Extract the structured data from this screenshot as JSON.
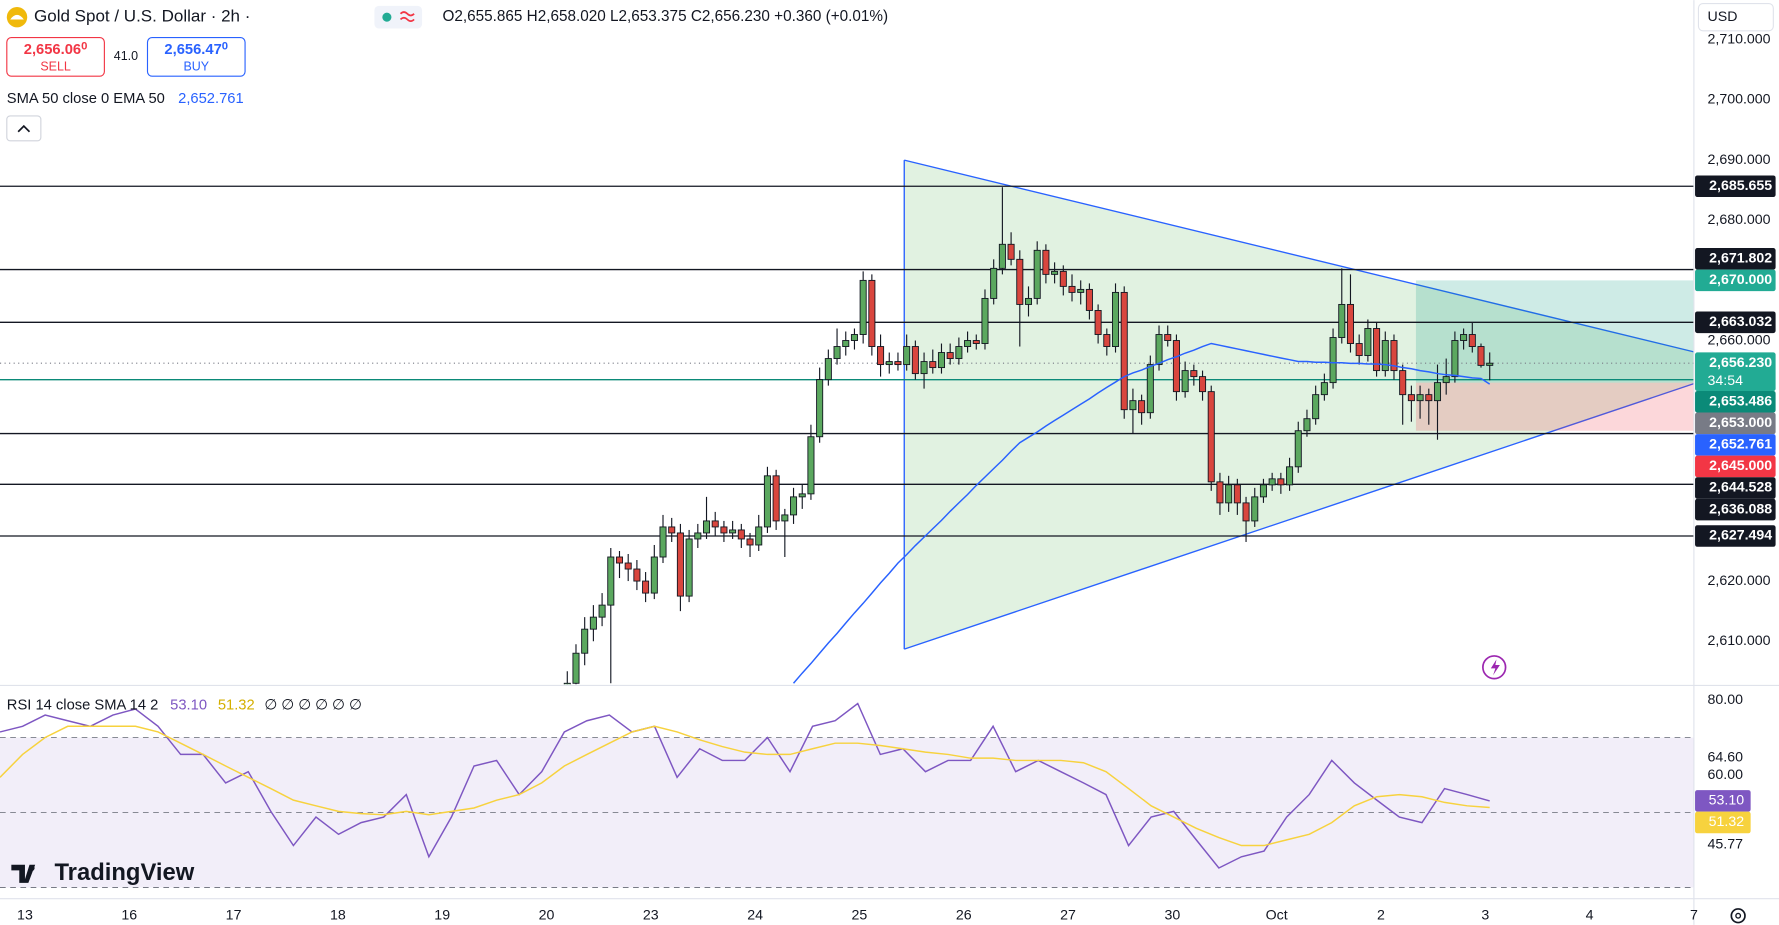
{
  "header": {
    "sell_price": "2,656.06",
    "sell_pip": "0",
    "sell": "SELL",
    "spread": "41.0",
    "buy_price": "2,656.47",
    "buy_pip": "0",
    "buy": "BUY",
    "currency": "USD",
    "logo": "TradingView"
  },
  "chart_data": [
    {
      "type": "candlestick",
      "title": "Gold Spot / U.S. Dollar · 2h ·",
      "ohlc_legend": "O2,655.865 H2,658.020 L2,653.375 C2,656.230 +0.360 (+0.01%)",
      "up_color": "#5ba85f",
      "down_color": "#d9463e",
      "ylim": [
        2602.83,
        2716.6
      ],
      "yticks": [
        {
          "value": 2610,
          "label": "2,610.000"
        },
        {
          "value": 2620,
          "label": "2,620.000"
        },
        {
          "value": 2660,
          "label": "2,660.000"
        },
        {
          "value": 2680,
          "label": "2,680.000"
        },
        {
          "value": 2690,
          "label": "2,690.000"
        },
        {
          "value": 2700,
          "label": "2,700.000"
        },
        {
          "value": 2710,
          "label": "2,710.000"
        }
      ],
      "xticks": [
        "13",
        "16",
        "17",
        "18",
        "19",
        "20",
        "23",
        "24",
        "25",
        "26",
        "27",
        "30",
        "Oct",
        "2",
        "3",
        "4",
        "7"
      ],
      "ohlc": [
        [
          2600,
          2605,
          2598,
          2603
        ],
        [
          2603,
          2609.5,
          2601.5,
          2608
        ],
        [
          2608,
          2614,
          2606,
          2612
        ],
        [
          2612,
          2616,
          2610,
          2614
        ],
        [
          2614,
          2618,
          2612.5,
          2616
        ],
        [
          2616,
          2625.5,
          2603,
          2624
        ],
        [
          2624,
          2625,
          2620.5,
          2623
        ],
        [
          2623,
          2624.5,
          2620,
          2622
        ],
        [
          2622,
          2623.5,
          2618.5,
          2620
        ],
        [
          2620,
          2621.5,
          2616.5,
          2618
        ],
        [
          2618,
          2626,
          2617,
          2624
        ],
        [
          2624,
          2631,
          2623,
          2629
        ],
        [
          2629,
          2630.5,
          2626.5,
          2628
        ],
        [
          2628,
          2629.5,
          2615,
          2617.5
        ],
        [
          2617.5,
          2628.5,
          2616.5,
          2627
        ],
        [
          2627,
          2629.5,
          2625.5,
          2628
        ],
        [
          2628,
          2634,
          2627,
          2630
        ],
        [
          2630,
          2631.5,
          2627.5,
          2629
        ],
        [
          2629,
          2630,
          2626.5,
          2628
        ],
        [
          2628,
          2630,
          2627,
          2628.5
        ],
        [
          2628.5,
          2629.5,
          2625.5,
          2627
        ],
        [
          2627,
          2628,
          2624,
          2626
        ],
        [
          2626,
          2631,
          2625,
          2629
        ],
        [
          2629,
          2639,
          2628,
          2637.5
        ],
        [
          2637.5,
          2638.5,
          2628.5,
          2630
        ],
        [
          2630,
          2632,
          2624,
          2631
        ],
        [
          2631,
          2635.5,
          2629.5,
          2634
        ],
        [
          2634,
          2636,
          2632,
          2634.5
        ],
        [
          2634.5,
          2646,
          2633.5,
          2644
        ],
        [
          2644,
          2655.5,
          2643,
          2653.5
        ],
        [
          2653.5,
          2658.5,
          2652.5,
          2657
        ],
        [
          2657,
          2662,
          2656,
          2659
        ],
        [
          2659,
          2661.5,
          2657.5,
          2660
        ],
        [
          2660,
          2662,
          2658.5,
          2661
        ],
        [
          2661,
          2671.5,
          2659.5,
          2670
        ],
        [
          2670,
          2671,
          2657.5,
          2659
        ],
        [
          2659,
          2661,
          2654,
          2656
        ],
        [
          2656,
          2658,
          2654.5,
          2656.5
        ],
        [
          2656.5,
          2658,
          2655,
          2656
        ],
        [
          2656,
          2661,
          2655,
          2659
        ],
        [
          2659,
          2660,
          2653.5,
          2654.5
        ],
        [
          2654.5,
          2658,
          2652,
          2656.5
        ],
        [
          2656.5,
          2658.5,
          2654.5,
          2655.5
        ],
        [
          2655.5,
          2659.5,
          2654.5,
          2658
        ],
        [
          2658,
          2659.5,
          2656,
          2657
        ],
        [
          2657,
          2660.5,
          2656,
          2659
        ],
        [
          2659,
          2661.5,
          2658,
          2660
        ],
        [
          2660,
          2661,
          2658.5,
          2659.5
        ],
        [
          2659.5,
          2668.5,
          2658.5,
          2667
        ],
        [
          2667,
          2673.5,
          2666,
          2672
        ],
        [
          2672,
          2685.5,
          2671,
          2676
        ],
        [
          2676,
          2678,
          2672.5,
          2673.5
        ],
        [
          2673.5,
          2675,
          2659,
          2666
        ],
        [
          2666,
          2669,
          2664,
          2667
        ],
        [
          2667,
          2676.5,
          2666,
          2675
        ],
        [
          2675,
          2676,
          2669.5,
          2671
        ],
        [
          2671,
          2673,
          2669.5,
          2671.5
        ],
        [
          2671.5,
          2672.5,
          2667.5,
          2669
        ],
        [
          2669,
          2671,
          2666.5,
          2668
        ],
        [
          2668,
          2670,
          2666,
          2668.5
        ],
        [
          2668.5,
          2669.5,
          2663.5,
          2665
        ],
        [
          2665,
          2666,
          2659.5,
          2661
        ],
        [
          2661,
          2662,
          2657.5,
          2659
        ],
        [
          2659,
          2669.5,
          2658,
          2668
        ],
        [
          2668,
          2669,
          2647,
          2648.5
        ],
        [
          2648.5,
          2652,
          2644.5,
          2650
        ],
        [
          2650,
          2651,
          2646,
          2648
        ],
        [
          2648,
          2657.5,
          2647,
          2656
        ],
        [
          2656,
          2662.5,
          2655,
          2661
        ],
        [
          2661,
          2662.5,
          2659,
          2660
        ],
        [
          2660,
          2661,
          2650,
          2651.5
        ],
        [
          2651.5,
          2656.5,
          2650.5,
          2655
        ],
        [
          2655,
          2656,
          2652.5,
          2654
        ],
        [
          2654,
          2655,
          2650,
          2651.5
        ],
        [
          2651.5,
          2652.5,
          2635,
          2636.5
        ],
        [
          2636.5,
          2638,
          2631,
          2633
        ],
        [
          2633,
          2637.5,
          2631.5,
          2636
        ],
        [
          2636,
          2637,
          2631,
          2633
        ],
        [
          2633,
          2634,
          2626.5,
          2630
        ],
        [
          2630,
          2635.5,
          2629,
          2634
        ],
        [
          2634,
          2637,
          2633,
          2636
        ],
        [
          2636,
          2638,
          2635,
          2637
        ],
        [
          2637,
          2638,
          2634.5,
          2636
        ],
        [
          2636,
          2640.5,
          2635,
          2639
        ],
        [
          2639,
          2646.5,
          2638,
          2645
        ],
        [
          2645,
          2648.5,
          2644,
          2647
        ],
        [
          2647,
          2652.5,
          2646,
          2651
        ],
        [
          2651,
          2654.5,
          2650,
          2653
        ],
        [
          2653,
          2662,
          2652,
          2660.5
        ],
        [
          2660.5,
          2672,
          2659.5,
          2666
        ],
        [
          2666,
          2671,
          2658,
          2659.5
        ],
        [
          2659.5,
          2661,
          2656,
          2657.5
        ],
        [
          2657.5,
          2663.5,
          2656.5,
          2662
        ],
        [
          2662,
          2663,
          2654,
          2655
        ],
        [
          2655,
          2661.5,
          2654,
          2660
        ],
        [
          2660,
          2661,
          2653.5,
          2655
        ],
        [
          2655,
          2656,
          2646,
          2651
        ],
        [
          2651,
          2652.5,
          2646.5,
          2650
        ],
        [
          2650,
          2652.5,
          2647,
          2651
        ],
        [
          2651,
          2652,
          2646,
          2650
        ],
        [
          2650,
          2656,
          2643.5,
          2653
        ],
        [
          2653,
          2657,
          2651,
          2654
        ],
        [
          2654,
          2661.5,
          2653,
          2660
        ],
        [
          2660,
          2662,
          2658.5,
          2661
        ],
        [
          2661,
          2663,
          2658,
          2659
        ],
        [
          2659,
          2659.5,
          2655.5,
          2655.865
        ],
        [
          2655.865,
          2658.02,
          2653.375,
          2656.23
        ]
      ],
      "series": [
        {
          "name": "SMA 50 close 0 EMA 50",
          "color": "#2962ff",
          "values": [
            null,
            null,
            null,
            null,
            null,
            null,
            null,
            null,
            null,
            null,
            null,
            null,
            null,
            null,
            null,
            null,
            null,
            null,
            null,
            null,
            null,
            null,
            null,
            null,
            null,
            null,
            2603,
            2604.7,
            2606.3,
            2608,
            2609.7,
            2611.3,
            2613,
            2614.7,
            2616.3,
            2618,
            2619.7,
            2621.3,
            2623,
            2624.4,
            2625.9,
            2627.3,
            2628.7,
            2630.1,
            2631.6,
            2633,
            2634.4,
            2635.9,
            2637.3,
            2638.7,
            2640.1,
            2641.6,
            2643,
            2643.9,
            2644.8,
            2645.8,
            2646.7,
            2647.6,
            2648.5,
            2649.4,
            2650.3,
            2651.3,
            2652.2,
            2653.1,
            2654,
            2654.6,
            2655.1,
            2655.7,
            2656.2,
            2656.8,
            2657.3,
            2657.9,
            2658.4,
            2659,
            2659.5,
            2659.2,
            2658.9,
            2658.6,
            2658.3,
            2658,
            2657.7,
            2657.4,
            2657.1,
            2656.8,
            2656.5,
            2656.5,
            2656.4,
            2656.4,
            2656.3,
            2656.3,
            2656.2,
            2656.2,
            2656.1,
            2656.1,
            2656,
            2655.8,
            2655.5,
            2655.3,
            2655,
            2654.8,
            2654.5,
            2654.3,
            2654.2,
            2654,
            2653.8,
            2653.7,
            2652.761
          ]
        }
      ],
      "price_labels": [
        {
          "value": 2685.655,
          "label": "2,685.655",
          "color": "#131722",
          "style": "line"
        },
        {
          "value": 2671.802,
          "label": "2,671.802",
          "color": "#131722",
          "style": "line"
        },
        {
          "value": 2670,
          "label": "2,670.000",
          "color": "#22ab94",
          "style": "target"
        },
        {
          "value": 2663.032,
          "label": "2,663.032",
          "color": "#131722",
          "style": "line"
        },
        {
          "value": 2656.23,
          "label": "2,656.230",
          "color": "#22ab94",
          "style": "current",
          "countdown": "34:54"
        },
        {
          "value": 2653.486,
          "label": "2,653.486",
          "color": "#0b8a78",
          "style": "line"
        },
        {
          "value": 2653,
          "label": "2,653.000",
          "color": "#787b86",
          "style": "entry"
        },
        {
          "value": 2652.761,
          "label": "2,652.761",
          "color": "#2962ff",
          "style": "none"
        },
        {
          "value": 2645,
          "label": "2,645.000",
          "color": "#f23645",
          "style": "stop"
        },
        {
          "value": 2644.528,
          "label": "2,644.528",
          "color": "#131722",
          "style": "line"
        },
        {
          "value": 2636.088,
          "label": "2,636.088",
          "color": "#131722",
          "style": "line"
        },
        {
          "value": 2627.494,
          "label": "2,627.494",
          "color": "#131722",
          "style": "line"
        }
      ]
    },
    {
      "type": "line",
      "title": "RSI 14 close SMA 14 2",
      "extra": "∅ ∅ ∅ ∅ ∅ ∅",
      "ylim": [
        27,
        83.6
      ],
      "yticks": [
        {
          "value": 80,
          "label": "80.00"
        },
        {
          "value": 64.6,
          "label": "64.60"
        },
        {
          "value": 60,
          "label": "60.00"
        },
        45.77
      ],
      "levels": [
        70,
        50,
        30
      ],
      "series": [
        {
          "color": "#7e57c2",
          "last_label": "53.10",
          "values": [
            71.5,
            73,
            76,
            74.5,
            73,
            76,
            77.6,
            73,
            65.5,
            65.5,
            57.9,
            60.9,
            50.3,
            41.2,
            48.8,
            44.2,
            47.3,
            48.8,
            54.8,
            38.2,
            48.8,
            62.4,
            63.9,
            54.8,
            60.9,
            71.5,
            74.5,
            76,
            71.5,
            73,
            59.4,
            67,
            63.9,
            63.9,
            70,
            60.9,
            73,
            74.5,
            79.1,
            65.5,
            67,
            60.9,
            63.9,
            63.9,
            73,
            60.9,
            63.9,
            60.9,
            57.9,
            54.8,
            41.2,
            48.8,
            50.3,
            42.7,
            35.2,
            38.2,
            39.7,
            48.8,
            54.8,
            63.9,
            57.9,
            53.3,
            48.8,
            47.3,
            56.4,
            54.8,
            53.1
          ]
        },
        {
          "color": "#f7d23e",
          "last_label": "51.32",
          "values": [
            59.4,
            65.5,
            70,
            73,
            73,
            73,
            73,
            71.5,
            68.5,
            65.5,
            62.4,
            59.4,
            56.4,
            53.3,
            51.8,
            50.3,
            49.7,
            49.4,
            50.3,
            49.4,
            50.3,
            51.2,
            53.3,
            54.8,
            57.9,
            62.4,
            65.5,
            68.5,
            71.5,
            73,
            71.5,
            69.4,
            67.6,
            66.1,
            65.5,
            65.5,
            67,
            68.5,
            68.5,
            67.9,
            67,
            66.1,
            65.5,
            64.5,
            64.5,
            63.9,
            63.9,
            63.9,
            63.3,
            60.9,
            56.4,
            51.8,
            48.8,
            45.8,
            43.3,
            41.2,
            41.2,
            42.7,
            44.2,
            47.3,
            51.8,
            54.2,
            54.8,
            54.2,
            52.7,
            51.8,
            51.32
          ]
        }
      ]
    }
  ]
}
